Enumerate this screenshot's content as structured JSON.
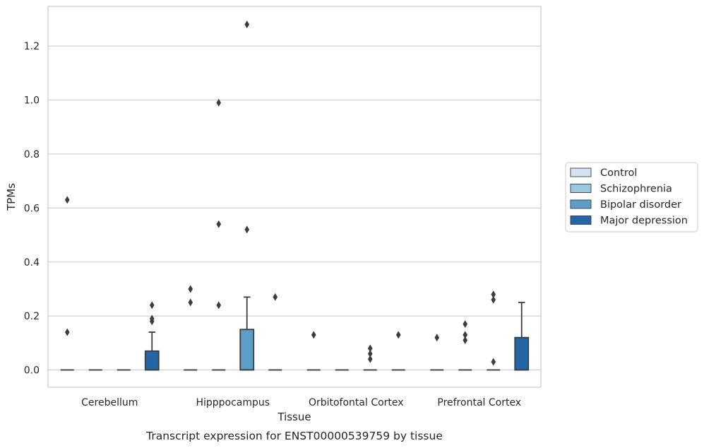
{
  "chart_data": {
    "type": "box",
    "xlabel": "Tissue",
    "ylabel": "TPMs",
    "caption": "Transcript expression for ENST00000539759 by tissue",
    "ylim": [
      -0.064,
      1.347
    ],
    "yticks": [
      "0.0",
      "0.2",
      "0.4",
      "0.6",
      "0.8",
      "1.0",
      "1.2"
    ],
    "grid": "horizontal",
    "legend_position": "right",
    "categories": [
      "Cerebellum",
      "Hipppocampus",
      "Orbitofontal Cortex",
      "Prefrontal Cortex"
    ],
    "series": [
      {
        "name": "Control",
        "color": "#d3e3f3",
        "boxes": [
          {
            "q1": 0,
            "median": 0,
            "q3": 0,
            "whisker_low": 0,
            "whisker_high": 0,
            "outliers": [
              0.63,
              0.14
            ]
          },
          {
            "q1": 0,
            "median": 0,
            "q3": 0,
            "whisker_low": 0,
            "whisker_high": 0,
            "outliers": [
              0.3,
              0.25
            ]
          },
          {
            "q1": 0,
            "median": 0,
            "q3": 0,
            "whisker_low": 0,
            "whisker_high": 0,
            "outliers": [
              0.13
            ]
          },
          {
            "q1": 0,
            "median": 0,
            "q3": 0,
            "whisker_low": 0,
            "whisker_high": 0,
            "outliers": [
              0.12
            ]
          }
        ]
      },
      {
        "name": "Schizophrenia",
        "color": "#9ac8e0",
        "boxes": [
          {
            "q1": 0,
            "median": 0,
            "q3": 0,
            "whisker_low": 0,
            "whisker_high": 0,
            "outliers": []
          },
          {
            "q1": 0,
            "median": 0,
            "q3": 0,
            "whisker_low": 0,
            "whisker_high": 0,
            "outliers": [
              0.99,
              0.54,
              0.24
            ]
          },
          {
            "q1": 0,
            "median": 0,
            "q3": 0,
            "whisker_low": 0,
            "whisker_high": 0,
            "outliers": []
          },
          {
            "q1": 0,
            "median": 0,
            "q3": 0,
            "whisker_low": 0,
            "whisker_high": 0,
            "outliers": [
              0.17,
              0.13,
              0.11
            ]
          }
        ]
      },
      {
        "name": "Bipolar disorder",
        "color": "#5a9ec9",
        "boxes": [
          {
            "q1": 0,
            "median": 0,
            "q3": 0,
            "whisker_low": 0,
            "whisker_high": 0,
            "outliers": []
          },
          {
            "q1": 0,
            "median": 0,
            "q3": 0.15,
            "whisker_low": 0,
            "whisker_high": 0.27,
            "outliers": [
              1.28,
              0.52
            ]
          },
          {
            "q1": 0,
            "median": 0,
            "q3": 0,
            "whisker_low": 0,
            "whisker_high": 0,
            "outliers": [
              0.08,
              0.06,
              0.04
            ]
          },
          {
            "q1": 0,
            "median": 0,
            "q3": 0,
            "whisker_low": 0,
            "whisker_high": 0,
            "outliers": [
              0.28,
              0.26,
              0.03
            ]
          }
        ]
      },
      {
        "name": "Major depression",
        "color": "#2465a5",
        "boxes": [
          {
            "q1": 0,
            "median": 0,
            "q3": 0.07,
            "whisker_low": 0,
            "whisker_high": 0.14,
            "outliers": [
              0.24,
              0.19,
              0.18
            ]
          },
          {
            "q1": 0,
            "median": 0,
            "q3": 0,
            "whisker_low": 0,
            "whisker_high": 0,
            "outliers": [
              0.27
            ]
          },
          {
            "q1": 0,
            "median": 0,
            "q3": 0,
            "whisker_low": 0,
            "whisker_high": 0,
            "outliers": [
              0.13
            ]
          },
          {
            "q1": 0,
            "median": 0,
            "q3": 0.12,
            "whisker_low": 0,
            "whisker_high": 0.25,
            "outliers": []
          }
        ]
      }
    ]
  }
}
